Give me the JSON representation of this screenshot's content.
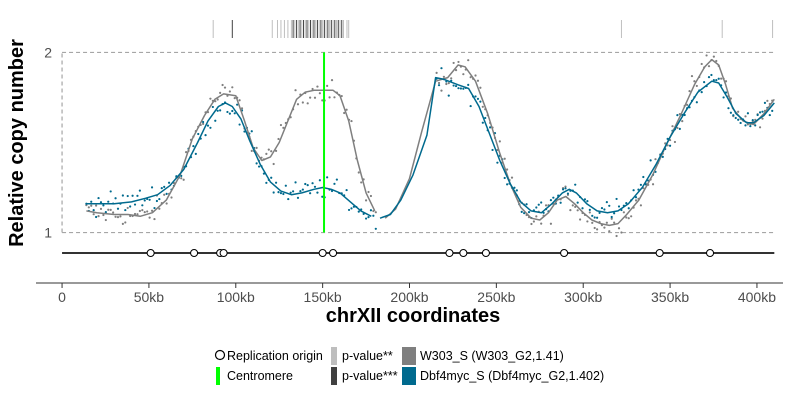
{
  "chart_data": {
    "type": "scatter",
    "title": "",
    "xlabel": "chrXII coordinates",
    "ylabel": "Relative copy number",
    "xlim": [
      -15000,
      415000
    ],
    "ylim": [
      0.72,
      2.18
    ],
    "x_ticks": [
      0,
      50000,
      100000,
      150000,
      200000,
      250000,
      300000,
      350000,
      400000
    ],
    "x_tick_labels": [
      "0",
      "50kb",
      "100kb",
      "150kb",
      "200kb",
      "250kb",
      "300kb",
      "350kb",
      "400kb"
    ],
    "y_ticks": [
      1,
      2
    ],
    "y_tick_labels": [
      "1",
      "2"
    ],
    "reference_lines": [
      1,
      2
    ],
    "chromosome_span": [
      0,
      410000
    ],
    "gap": [
      181000,
      215000
    ],
    "centromere": 150800,
    "replication_origins": [
      51000,
      76000,
      91000,
      93000,
      150000,
      156000,
      223000,
      231000,
      244000,
      289000,
      344000,
      373000
    ],
    "pvalue_2star": [
      87000,
      121000,
      124000,
      126000,
      128000,
      130000,
      132000,
      134000,
      136000,
      138000,
      140000,
      142000,
      144000,
      146000,
      148000,
      150000,
      152000,
      154000,
      156000,
      158000,
      160000,
      162000,
      164000,
      165000,
      322000,
      380000,
      409000
    ],
    "pvalue_3star": [
      98000,
      133000,
      135000,
      137000,
      139000,
      141000,
      143000,
      145000,
      147000,
      149000,
      151000,
      153000,
      155000,
      157000,
      159000,
      161000
    ],
    "series": [
      {
        "name": "W303_S (W303_G2,1.41)",
        "color": "#7f7f7f",
        "curve": [
          [
            14000,
            1.12
          ],
          [
            20000,
            1.11
          ],
          [
            30000,
            1.1
          ],
          [
            38000,
            1.1
          ],
          [
            45000,
            1.09
          ],
          [
            52000,
            1.11
          ],
          [
            60000,
            1.18
          ],
          [
            68000,
            1.32
          ],
          [
            75000,
            1.52
          ],
          [
            82000,
            1.65
          ],
          [
            88000,
            1.74
          ],
          [
            93000,
            1.77
          ],
          [
            100000,
            1.76
          ],
          [
            105000,
            1.62
          ],
          [
            110000,
            1.47
          ],
          [
            115000,
            1.4
          ],
          [
            120000,
            1.42
          ],
          [
            125000,
            1.5
          ],
          [
            130000,
            1.62
          ],
          [
            135000,
            1.74
          ],
          [
            140000,
            1.78
          ],
          [
            145000,
            1.79
          ],
          [
            150000,
            1.79
          ],
          [
            156000,
            1.79
          ],
          [
            160000,
            1.76
          ],
          [
            165000,
            1.62
          ],
          [
            170000,
            1.4
          ],
          [
            175000,
            1.22
          ],
          [
            180000,
            1.12
          ],
          [
            186000,
            1.08
          ],
          [
            192000,
            1.13
          ],
          [
            200000,
            1.3
          ],
          [
            207000,
            1.56
          ],
          [
            215000,
            1.84
          ],
          [
            222000,
            1.86
          ],
          [
            228000,
            1.93
          ],
          [
            232000,
            1.92
          ],
          [
            238000,
            1.84
          ],
          [
            245000,
            1.66
          ],
          [
            252000,
            1.44
          ],
          [
            258000,
            1.27
          ],
          [
            264000,
            1.14
          ],
          [
            270000,
            1.08
          ],
          [
            275000,
            1.07
          ],
          [
            280000,
            1.11
          ],
          [
            285000,
            1.18
          ],
          [
            290000,
            1.2
          ],
          [
            295000,
            1.16
          ],
          [
            300000,
            1.11
          ],
          [
            305000,
            1.07
          ],
          [
            310000,
            1.05
          ],
          [
            315000,
            1.04
          ],
          [
            320000,
            1.05
          ],
          [
            325000,
            1.1
          ],
          [
            332000,
            1.18
          ],
          [
            340000,
            1.32
          ],
          [
            348000,
            1.49
          ],
          [
            356000,
            1.65
          ],
          [
            364000,
            1.82
          ],
          [
            370000,
            1.92
          ],
          [
            374000,
            1.96
          ],
          [
            378000,
            1.93
          ],
          [
            382000,
            1.82
          ],
          [
            386000,
            1.69
          ],
          [
            392000,
            1.62
          ],
          [
            398000,
            1.6
          ],
          [
            404000,
            1.66
          ],
          [
            410000,
            1.74
          ]
        ]
      },
      {
        "name": "Dbf4myc_S (Dbf4myc_G2,1.402)",
        "color": "#006a8e",
        "curve": [
          [
            14000,
            1.16
          ],
          [
            20000,
            1.16
          ],
          [
            30000,
            1.16
          ],
          [
            40000,
            1.17
          ],
          [
            48000,
            1.19
          ],
          [
            55000,
            1.21
          ],
          [
            62000,
            1.26
          ],
          [
            70000,
            1.35
          ],
          [
            78000,
            1.5
          ],
          [
            84000,
            1.62
          ],
          [
            90000,
            1.7
          ],
          [
            94000,
            1.72
          ],
          [
            98000,
            1.7
          ],
          [
            103000,
            1.63
          ],
          [
            108000,
            1.51
          ],
          [
            114000,
            1.38
          ],
          [
            120000,
            1.28
          ],
          [
            126000,
            1.23
          ],
          [
            132000,
            1.21
          ],
          [
            138000,
            1.22
          ],
          [
            145000,
            1.24
          ],
          [
            150000,
            1.25
          ],
          [
            155000,
            1.24
          ],
          [
            160000,
            1.22
          ],
          [
            166000,
            1.17
          ],
          [
            172000,
            1.12
          ],
          [
            178000,
            1.09
          ],
          [
            183000,
            1.08
          ],
          [
            189000,
            1.1
          ],
          [
            195000,
            1.18
          ],
          [
            202000,
            1.32
          ],
          [
            210000,
            1.54
          ],
          [
            215000,
            1.86
          ],
          [
            220000,
            1.85
          ],
          [
            228000,
            1.82
          ],
          [
            234000,
            1.8
          ],
          [
            240000,
            1.7
          ],
          [
            246000,
            1.55
          ],
          [
            252000,
            1.4
          ],
          [
            258000,
            1.27
          ],
          [
            264000,
            1.17
          ],
          [
            270000,
            1.12
          ],
          [
            276000,
            1.11
          ],
          [
            282000,
            1.16
          ],
          [
            288000,
            1.22
          ],
          [
            292000,
            1.24
          ],
          [
            296000,
            1.22
          ],
          [
            302000,
            1.16
          ],
          [
            308000,
            1.12
          ],
          [
            314000,
            1.11
          ],
          [
            320000,
            1.12
          ],
          [
            326000,
            1.16
          ],
          [
            334000,
            1.25
          ],
          [
            342000,
            1.38
          ],
          [
            350000,
            1.53
          ],
          [
            358000,
            1.66
          ],
          [
            366000,
            1.78
          ],
          [
            374000,
            1.84
          ],
          [
            378000,
            1.83
          ],
          [
            383000,
            1.75
          ],
          [
            388000,
            1.66
          ],
          [
            394000,
            1.61
          ],
          [
            398000,
            1.61
          ],
          [
            404000,
            1.65
          ],
          [
            410000,
            1.72
          ]
        ]
      }
    ],
    "legend": {
      "placement": "bottom",
      "entries": [
        {
          "label": "Replication origin",
          "kind": "origin"
        },
        {
          "label": "Centromere",
          "kind": "centromere",
          "color": "#00ff00"
        },
        {
          "label": "p-value**",
          "kind": "pvalue",
          "color": "#bebebe"
        },
        {
          "label": "p-value***",
          "kind": "pvalue",
          "color": "#404040"
        },
        {
          "label": "W303_S (W303_G2,1.41)",
          "kind": "series",
          "color": "#7f7f7f"
        },
        {
          "label": "Dbf4myc_S (Dbf4myc_G2,1.402)",
          "kind": "series",
          "color": "#006a8e"
        }
      ]
    }
  }
}
